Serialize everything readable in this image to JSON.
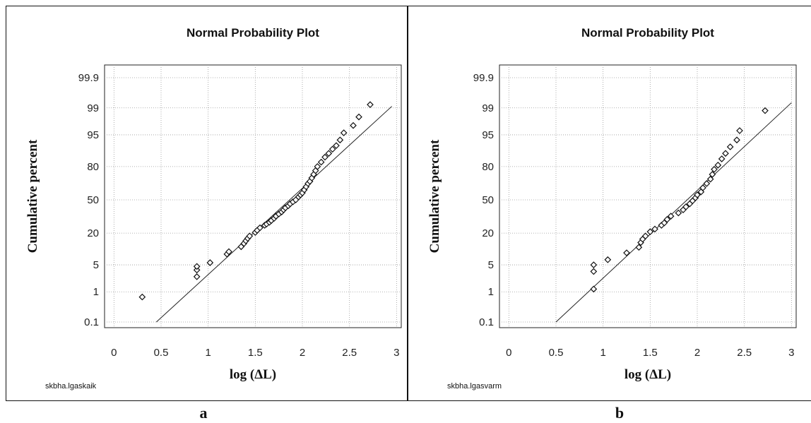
{
  "chart_data": [
    {
      "type": "scatter",
      "panel": "a",
      "title": "Normal Probability Plot",
      "xlabel": "log (ΔL)",
      "ylabel": "Cumulative percent",
      "source": "skbha.lgaskaik",
      "xlim": [
        -0.1,
        3.05
      ],
      "x_ticks": [
        0,
        0.5,
        1,
        1.5,
        2,
        2.5,
        3
      ],
      "y_ticks": [
        99.9,
        99,
        95,
        80,
        50,
        20,
        5,
        1,
        0.1
      ],
      "grid": true,
      "fit_line": {
        "x": [
          0.45,
          2.95
        ],
        "y_percent": [
          0.1,
          99.1
        ]
      },
      "points": [
        [
          0.3,
          0.7
        ],
        [
          0.88,
          2.6
        ],
        [
          0.88,
          3.8
        ],
        [
          0.88,
          4.6
        ],
        [
          1.02,
          5.6
        ],
        [
          1.2,
          8.5
        ],
        [
          1.22,
          9.5
        ],
        [
          1.35,
          11.8
        ],
        [
          1.38,
          13.5
        ],
        [
          1.4,
          15
        ],
        [
          1.42,
          16.5
        ],
        [
          1.44,
          18
        ],
        [
          1.5,
          20.5
        ],
        [
          1.52,
          22
        ],
        [
          1.55,
          24
        ],
        [
          1.6,
          26
        ],
        [
          1.62,
          27
        ],
        [
          1.65,
          28.5
        ],
        [
          1.67,
          30
        ],
        [
          1.7,
          32
        ],
        [
          1.72,
          34
        ],
        [
          1.75,
          36
        ],
        [
          1.78,
          38
        ],
        [
          1.8,
          40
        ],
        [
          1.82,
          42
        ],
        [
          1.85,
          44
        ],
        [
          1.87,
          46
        ],
        [
          1.9,
          48
        ],
        [
          1.93,
          50
        ],
        [
          1.96,
          53
        ],
        [
          1.98,
          55
        ],
        [
          2.0,
          57
        ],
        [
          2.02,
          60
        ],
        [
          2.04,
          63
        ],
        [
          2.06,
          66
        ],
        [
          2.08,
          68
        ],
        [
          2.1,
          71
        ],
        [
          2.12,
          74
        ],
        [
          2.14,
          77
        ],
        [
          2.16,
          80
        ],
        [
          2.2,
          83
        ],
        [
          2.24,
          86
        ],
        [
          2.28,
          88
        ],
        [
          2.32,
          90
        ],
        [
          2.36,
          91.5
        ],
        [
          2.4,
          93.5
        ],
        [
          2.44,
          95.5
        ],
        [
          2.54,
          97
        ],
        [
          2.6,
          98.2
        ],
        [
          2.72,
          99.2
        ]
      ],
      "panel_label": "a"
    },
    {
      "type": "scatter",
      "panel": "b",
      "title": "Normal Probability Plot",
      "xlabel": "log (ΔL)",
      "ylabel": "Cumulative percent",
      "source": "skbha.lgasvarm",
      "xlim": [
        -0.1,
        3.05
      ],
      "x_ticks": [
        0,
        0.5,
        1,
        1.5,
        2,
        2.5,
        3
      ],
      "y_ticks": [
        99.9,
        99,
        95,
        80,
        50,
        20,
        5,
        1,
        0.1
      ],
      "grid": true,
      "fit_line": {
        "x": [
          0.5,
          3.0
        ],
        "y_percent": [
          0.1,
          99.3
        ]
      },
      "points": [
        [
          0.9,
          1.2
        ],
        [
          0.9,
          3.5
        ],
        [
          0.9,
          5
        ],
        [
          1.05,
          6.5
        ],
        [
          1.25,
          9
        ],
        [
          1.38,
          11.5
        ],
        [
          1.4,
          14
        ],
        [
          1.42,
          16
        ],
        [
          1.45,
          18
        ],
        [
          1.5,
          21
        ],
        [
          1.55,
          23
        ],
        [
          1.62,
          26
        ],
        [
          1.65,
          28
        ],
        [
          1.68,
          31
        ],
        [
          1.72,
          34
        ],
        [
          1.8,
          37
        ],
        [
          1.85,
          40
        ],
        [
          1.88,
          43
        ],
        [
          1.92,
          46
        ],
        [
          1.95,
          49
        ],
        [
          1.98,
          52
        ],
        [
          2.0,
          55
        ],
        [
          2.04,
          58
        ],
        [
          2.06,
          62
        ],
        [
          2.1,
          66
        ],
        [
          2.14,
          70
        ],
        [
          2.16,
          74
        ],
        [
          2.18,
          78
        ],
        [
          2.22,
          81
        ],
        [
          2.26,
          85
        ],
        [
          2.3,
          88
        ],
        [
          2.35,
          91
        ],
        [
          2.42,
          93.5
        ],
        [
          2.45,
          96
        ],
        [
          2.72,
          98.8
        ]
      ],
      "panel_label": "b"
    }
  ]
}
